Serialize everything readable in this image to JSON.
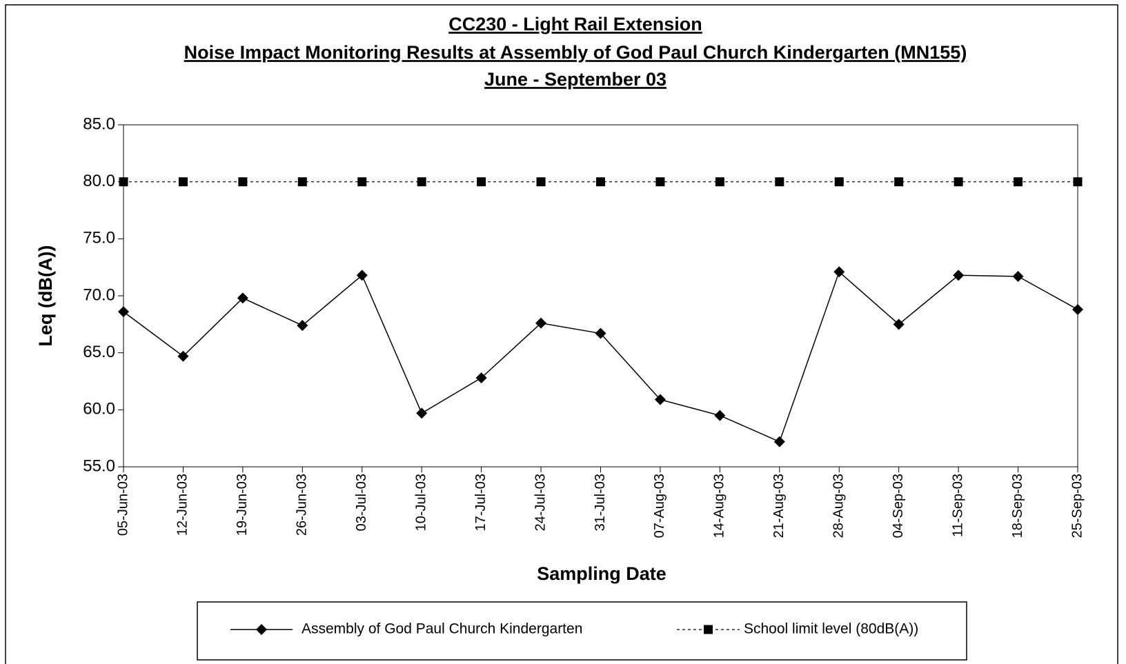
{
  "chart_data": {
    "type": "line",
    "title": [
      "CC230 - Light Rail Extension",
      "Noise Impact Monitoring Results at Assembly of God Paul Church Kindergarten (MN155)",
      "June - September 03"
    ],
    "x_label": "Sampling Date",
    "y_label": "Leq (dB(A))",
    "categories": [
      "05-Jun-03",
      "12-Jun-03",
      "19-Jun-03",
      "26-Jun-03",
      "03-Jul-03",
      "10-Jul-03",
      "17-Jul-03",
      "24-Jul-03",
      "31-Jul-03",
      "07-Aug-03",
      "14-Aug-03",
      "21-Aug-03",
      "28-Aug-03",
      "04-Sep-03",
      "11-Sep-03",
      "18-Sep-03",
      "25-Sep-03"
    ],
    "series": [
      {
        "name": "Assembly of God Paul Church Kindergarten",
        "color": "#000000",
        "marker": "diamond",
        "dashed": false,
        "values": [
          68.6,
          64.7,
          69.8,
          67.4,
          71.8,
          59.7,
          62.8,
          67.6,
          66.7,
          60.9,
          59.5,
          57.2,
          72.1,
          67.5,
          71.8,
          71.7,
          68.8
        ]
      },
      {
        "name": "School limit level (80dB(A))",
        "color": "#000000",
        "marker": "square",
        "dashed": true,
        "values": [
          80,
          80,
          80,
          80,
          80,
          80,
          80,
          80,
          80,
          80,
          80,
          80,
          80,
          80,
          80,
          80,
          80
        ]
      }
    ],
    "ylim": [
      55,
      85
    ],
    "yticks": [
      {
        "value": 55,
        "label": "55.0"
      },
      {
        "value": 60,
        "label": "60.0"
      },
      {
        "value": 65,
        "label": "65.0"
      },
      {
        "value": 70,
        "label": "70.0"
      },
      {
        "value": 75,
        "label": "75.0"
      },
      {
        "value": 80,
        "label": "80.0"
      },
      {
        "value": 85,
        "label": "85.0"
      }
    ],
    "grid": false,
    "legend": "bottom"
  }
}
